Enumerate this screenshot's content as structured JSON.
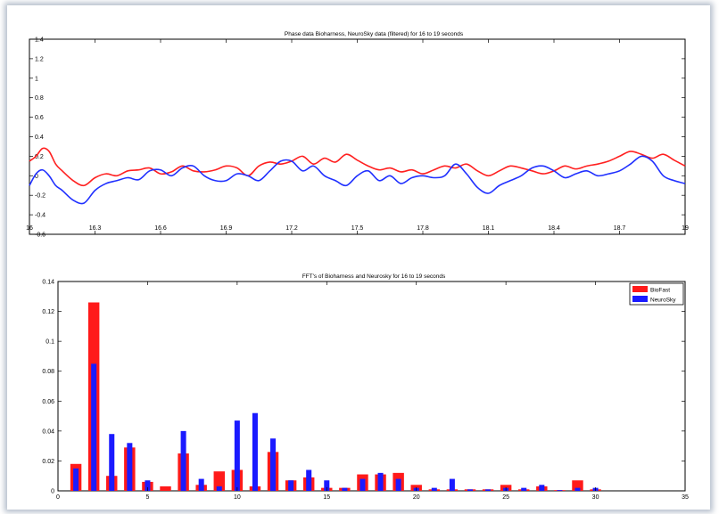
{
  "chart_data": [
    {
      "type": "line",
      "title": "Phase data Bioharness, NeuroSky data (filtered) for 16 to 19 seconds",
      "xlabel": "",
      "ylabel": "",
      "xlim": [
        16,
        19
      ],
      "ylim": [
        -0.6,
        1.4
      ],
      "x_ticks": [
        "16",
        "16.3",
        "16.6",
        "16.9",
        "17.2",
        "17.5",
        "17.8",
        "18.1",
        "18.4",
        "18.7",
        "19"
      ],
      "y_ticks": [
        "-0.6",
        "-0.4",
        "-0.2",
        "0",
        "0.2",
        "0.4",
        "0.6",
        "0.8",
        "1",
        "1.2",
        "1.4"
      ],
      "grid": false,
      "series": [
        {
          "color": "#ff2020",
          "x": [
            16.0,
            16.03,
            16.06,
            16.09,
            16.12,
            16.15,
            16.2,
            16.25,
            16.3,
            16.35,
            16.4,
            16.45,
            16.5,
            16.55,
            16.6,
            16.65,
            16.7,
            16.75,
            16.8,
            16.85,
            16.9,
            16.95,
            17.0,
            17.05,
            17.1,
            17.15,
            17.2,
            17.25,
            17.3,
            17.35,
            17.4,
            17.45,
            17.5,
            17.55,
            17.6,
            17.65,
            17.7,
            17.75,
            17.8,
            17.85,
            17.9,
            17.95,
            18.0,
            18.05,
            18.1,
            18.15,
            18.2,
            18.25,
            18.3,
            18.35,
            18.4,
            18.45,
            18.5,
            18.55,
            18.6,
            18.65,
            18.7,
            18.75,
            18.8,
            18.85,
            18.9,
            18.95,
            19.0
          ],
          "y": [
            0.15,
            0.2,
            0.28,
            0.25,
            0.12,
            0.05,
            -0.05,
            -0.1,
            -0.02,
            0.02,
            0.0,
            0.05,
            0.06,
            0.08,
            0.02,
            0.04,
            0.1,
            0.05,
            0.04,
            0.06,
            0.1,
            0.08,
            0.0,
            0.1,
            0.14,
            0.12,
            0.15,
            0.2,
            0.12,
            0.18,
            0.14,
            0.22,
            0.16,
            0.1,
            0.06,
            0.08,
            0.04,
            0.06,
            0.02,
            0.06,
            0.1,
            0.08,
            0.12,
            0.05,
            0.0,
            0.05,
            0.1,
            0.08,
            0.05,
            0.02,
            0.05,
            0.1,
            0.07,
            0.1,
            0.12,
            0.15,
            0.2,
            0.25,
            0.22,
            0.18,
            0.22,
            0.16,
            0.1
          ]
        },
        {
          "color": "#2030ff",
          "x": [
            16.0,
            16.03,
            16.06,
            16.09,
            16.12,
            16.15,
            16.2,
            16.25,
            16.3,
            16.35,
            16.4,
            16.45,
            16.5,
            16.55,
            16.6,
            16.65,
            16.7,
            16.75,
            16.8,
            16.85,
            16.9,
            16.95,
            17.0,
            17.05,
            17.1,
            17.15,
            17.2,
            17.25,
            17.3,
            17.35,
            17.4,
            17.45,
            17.5,
            17.55,
            17.6,
            17.65,
            17.7,
            17.75,
            17.8,
            17.85,
            17.9,
            17.95,
            18.0,
            18.05,
            18.1,
            18.15,
            18.2,
            18.25,
            18.3,
            18.35,
            18.4,
            18.45,
            18.5,
            18.55,
            18.6,
            18.65,
            18.7,
            18.75,
            18.8,
            18.85,
            18.9,
            18.95,
            19.0
          ],
          "y": [
            -0.1,
            0.02,
            0.06,
            0.0,
            -0.1,
            -0.15,
            -0.25,
            -0.28,
            -0.15,
            -0.08,
            -0.05,
            -0.02,
            -0.04,
            0.05,
            0.06,
            0.0,
            0.08,
            0.1,
            0.0,
            -0.05,
            -0.05,
            0.02,
            0.0,
            -0.05,
            0.05,
            0.15,
            0.15,
            0.05,
            0.1,
            0.0,
            -0.05,
            -0.1,
            0.0,
            0.05,
            -0.05,
            0.0,
            -0.08,
            -0.02,
            0.0,
            -0.02,
            0.0,
            0.12,
            0.02,
            -0.12,
            -0.18,
            -0.1,
            -0.05,
            0.0,
            0.08,
            0.1,
            0.05,
            -0.02,
            0.02,
            0.05,
            0.0,
            0.02,
            0.05,
            0.12,
            0.2,
            0.15,
            0.0,
            -0.05,
            -0.08
          ]
        }
      ]
    },
    {
      "type": "bar",
      "title": "FFT's of Bioharness and Neurosky for 16 to 19 seconds",
      "xlabel": "",
      "ylabel": "",
      "xlim": [
        0,
        35
      ],
      "ylim": [
        0,
        0.14
      ],
      "x_ticks": [
        "0",
        "5",
        "10",
        "15",
        "20",
        "25",
        "30",
        "35"
      ],
      "y_ticks": [
        "0",
        "0.02",
        "0.04",
        "0.06",
        "0.08",
        "0.1",
        "0.12",
        "0.14"
      ],
      "legend_position": "top-right",
      "x": [
        1,
        2,
        3,
        4,
        5,
        6,
        7,
        8,
        9,
        10,
        11,
        12,
        13,
        14,
        15,
        16,
        17,
        18,
        19,
        20,
        21,
        22,
        23,
        24,
        25,
        26,
        27,
        28,
        29,
        30
      ],
      "series": [
        {
          "name": "BioFast",
          "color": "#ff1a1a",
          "values": [
            0.018,
            0.126,
            0.01,
            0.029,
            0.006,
            0.003,
            0.025,
            0.004,
            0.013,
            0.014,
            0.003,
            0.026,
            0.007,
            0.009,
            0.002,
            0.002,
            0.011,
            0.011,
            0.012,
            0.004,
            0.001,
            0.001,
            0.001,
            0.001,
            0.004,
            0.001,
            0.003,
            0.0005,
            0.007,
            0.001
          ]
        },
        {
          "name": "NeuroSky",
          "color": "#1a1aff",
          "values": [
            0.015,
            0.085,
            0.038,
            0.032,
            0.007,
            0.0,
            0.04,
            0.008,
            0.003,
            0.047,
            0.052,
            0.035,
            0.007,
            0.014,
            0.007,
            0.002,
            0.008,
            0.012,
            0.008,
            0.002,
            0.002,
            0.008,
            0.001,
            0.001,
            0.002,
            0.002,
            0.004,
            0.0005,
            0.002,
            0.002
          ]
        }
      ]
    }
  ]
}
